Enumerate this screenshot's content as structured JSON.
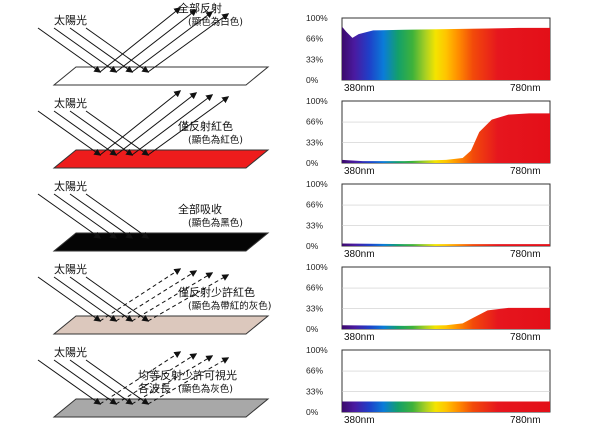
{
  "panels": [
    {
      "sunlight": "太陽光",
      "caption_line1": "全部反射",
      "caption_line2": "(顯色為白色)",
      "surface_color": "#ffffff",
      "ray_style": "solid",
      "curve": [
        [
          0,
          86
        ],
        [
          0.02,
          78
        ],
        [
          0.05,
          68
        ],
        [
          0.08,
          74
        ],
        [
          0.15,
          80
        ],
        [
          0.3,
          81
        ],
        [
          0.5,
          82
        ],
        [
          0.7,
          83
        ],
        [
          0.85,
          84
        ],
        [
          1,
          84
        ]
      ],
      "spectrum_fill": "full"
    },
    {
      "sunlight": "太陽光",
      "caption_line1": "僅反射紅色",
      "caption_line2": "(顯色為紅色)",
      "surface_color": "#ee1c1c",
      "ray_style": "solid",
      "curve": [
        [
          0,
          5
        ],
        [
          0.1,
          3
        ],
        [
          0.3,
          3
        ],
        [
          0.5,
          5
        ],
        [
          0.58,
          8
        ],
        [
          0.62,
          20
        ],
        [
          0.66,
          50
        ],
        [
          0.72,
          70
        ],
        [
          0.8,
          78
        ],
        [
          0.9,
          80
        ],
        [
          1,
          80
        ]
      ],
      "spectrum_fill": "red-only"
    },
    {
      "sunlight": "太陽光",
      "caption_line1": "全部吸收",
      "caption_line2": "(顯色為黑色)",
      "surface_color": "#050505",
      "ray_style": "none",
      "curve": [
        [
          0,
          4
        ],
        [
          0.3,
          3
        ],
        [
          0.6,
          3
        ],
        [
          0.8,
          3
        ],
        [
          1,
          3
        ]
      ],
      "spectrum_fill": "full"
    },
    {
      "sunlight": "太陽光",
      "caption_line1": "僅反射少許紅色",
      "caption_line2": "(顯色為帶紅的灰色)",
      "surface_color": "#dcc8bd",
      "ray_style": "dashed",
      "curve": [
        [
          0,
          6
        ],
        [
          0.3,
          5
        ],
        [
          0.5,
          6
        ],
        [
          0.58,
          9
        ],
        [
          0.63,
          18
        ],
        [
          0.7,
          30
        ],
        [
          0.8,
          34
        ],
        [
          1,
          34
        ]
      ],
      "spectrum_fill": "red-only"
    },
    {
      "sunlight": "太陽光",
      "caption_line1": "均等反射少許可視光",
      "caption_line2": "各波長",
      "caption_line3": "(顯色為灰色)",
      "surface_color": "#a8a8a8",
      "ray_style": "dashed",
      "curve": [
        [
          0,
          17
        ],
        [
          0.2,
          17
        ],
        [
          0.5,
          17
        ],
        [
          0.8,
          17
        ],
        [
          1,
          17
        ]
      ],
      "spectrum_fill": "full"
    }
  ],
  "chart_data": [
    {
      "type": "area",
      "xlabel_left": "380nm",
      "xlabel_right": "780nm",
      "yticks": [
        "100%",
        "66%",
        "33%",
        "0%"
      ],
      "x": [
        380,
        388,
        400,
        412,
        440,
        500,
        580,
        660,
        720,
        780
      ],
      "y": [
        86,
        78,
        68,
        74,
        80,
        81,
        82,
        83,
        84,
        84
      ]
    },
    {
      "type": "area",
      "xlabel_left": "380nm",
      "xlabel_right": "780nm",
      "yticks": [
        "100%",
        "66%",
        "33%",
        "0%"
      ],
      "x": [
        380,
        420,
        500,
        580,
        612,
        628,
        644,
        668,
        700,
        740,
        780
      ],
      "y": [
        5,
        3,
        3,
        5,
        8,
        20,
        50,
        70,
        78,
        80,
        80
      ]
    },
    {
      "type": "area",
      "xlabel_left": "380nm",
      "xlabel_right": "780nm",
      "yticks": [
        "100%",
        "66%",
        "33%",
        "0%"
      ],
      "x": [
        380,
        500,
        620,
        700,
        780
      ],
      "y": [
        4,
        3,
        3,
        3,
        3
      ]
    },
    {
      "type": "area",
      "xlabel_left": "380nm",
      "xlabel_right": "780nm",
      "yticks": [
        "100%",
        "66%",
        "33%",
        "0%"
      ],
      "x": [
        380,
        500,
        580,
        612,
        632,
        660,
        700,
        780
      ],
      "y": [
        6,
        5,
        6,
        9,
        18,
        30,
        34,
        34
      ]
    },
    {
      "type": "area",
      "xlabel_left": "380nm",
      "xlabel_right": "780nm",
      "yticks": [
        "100%",
        "66%",
        "33%",
        "0%"
      ],
      "x": [
        380,
        460,
        580,
        700,
        780
      ],
      "y": [
        17,
        17,
        17,
        17,
        17
      ]
    }
  ]
}
